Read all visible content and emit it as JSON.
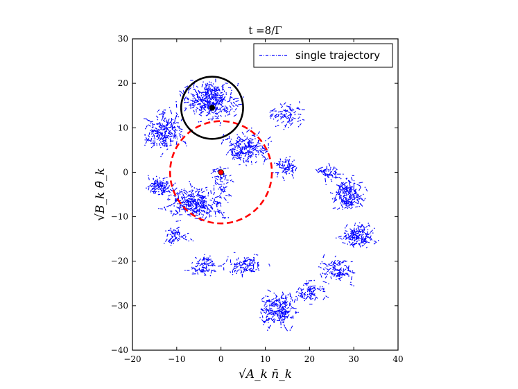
{
  "chart_data": {
    "type": "scatter",
    "title": "t =8/Γ",
    "xlabel": "√A_k n̄_k",
    "ylabel": "√B_k θ̄_k",
    "xlim": [
      -20,
      40
    ],
    "ylim": [
      -40,
      30
    ],
    "xticks": [
      -20,
      -10,
      0,
      10,
      20,
      30,
      40
    ],
    "yticks": [
      -40,
      -30,
      -20,
      -10,
      0,
      10,
      20,
      30
    ],
    "grid": false,
    "legend": {
      "placement": "top-right",
      "entries": [
        "single trajectory"
      ]
    },
    "colors": {
      "trajectory": "#0000ff",
      "red_circle": "#ff0000",
      "black_circle": "#000000"
    },
    "series": [
      {
        "name": "single trajectory",
        "style": "dash-dot",
        "clusters": [
          {
            "cx": -2,
            "cy": 16,
            "rx": 7,
            "ry": 4.5,
            "n": 260
          },
          {
            "cx": -13,
            "cy": 9,
            "rx": 5,
            "ry": 5,
            "n": 160
          },
          {
            "cx": -14,
            "cy": -3,
            "rx": 3,
            "ry": 2,
            "n": 70
          },
          {
            "cx": -6,
            "cy": -7,
            "rx": 7,
            "ry": 4,
            "n": 230
          },
          {
            "cx": -10,
            "cy": -14,
            "rx": 3,
            "ry": 2,
            "n": 40
          },
          {
            "cx": 6,
            "cy": 5,
            "rx": 6,
            "ry": 4,
            "n": 150
          },
          {
            "cx": 15,
            "cy": 13,
            "rx": 4,
            "ry": 3,
            "n": 60
          },
          {
            "cx": 15,
            "cy": 1,
            "rx": 3,
            "ry": 2,
            "n": 50
          },
          {
            "cx": 0,
            "cy": -2,
            "rx": 3,
            "ry": 4,
            "n": 40
          },
          {
            "cx": 24,
            "cy": 0,
            "rx": 3,
            "ry": 2,
            "n": 40
          },
          {
            "cx": 29,
            "cy": -5,
            "rx": 4,
            "ry": 4,
            "n": 140
          },
          {
            "cx": 31,
            "cy": -14,
            "rx": 4,
            "ry": 3,
            "n": 110
          },
          {
            "cx": 26,
            "cy": -22,
            "rx": 4,
            "ry": 3,
            "n": 80
          },
          {
            "cx": 20,
            "cy": -27,
            "rx": 4,
            "ry": 3,
            "n": 60
          },
          {
            "cx": 13,
            "cy": -31,
            "rx": 5,
            "ry": 4,
            "n": 160
          },
          {
            "cx": 5,
            "cy": -21,
            "rx": 5,
            "ry": 2.5,
            "n": 80
          },
          {
            "cx": -4,
            "cy": -21,
            "rx": 3,
            "ry": 3,
            "n": 60
          }
        ]
      }
    ],
    "circles": [
      {
        "name": "red-dashed-circle",
        "center": [
          0,
          0
        ],
        "radius": 11.5,
        "style": "dashed",
        "color": "#ff0000"
      },
      {
        "name": "black-solid-circle",
        "center": [
          -2,
          14.5
        ],
        "radius": 7,
        "style": "solid",
        "color": "#000000"
      }
    ],
    "markers": [
      {
        "name": "red-center-dot",
        "x": 0,
        "y": 0,
        "color": "#ff0000"
      },
      {
        "name": "black-center-dot",
        "x": -2,
        "y": 14.5,
        "color": "#000000"
      }
    ]
  }
}
